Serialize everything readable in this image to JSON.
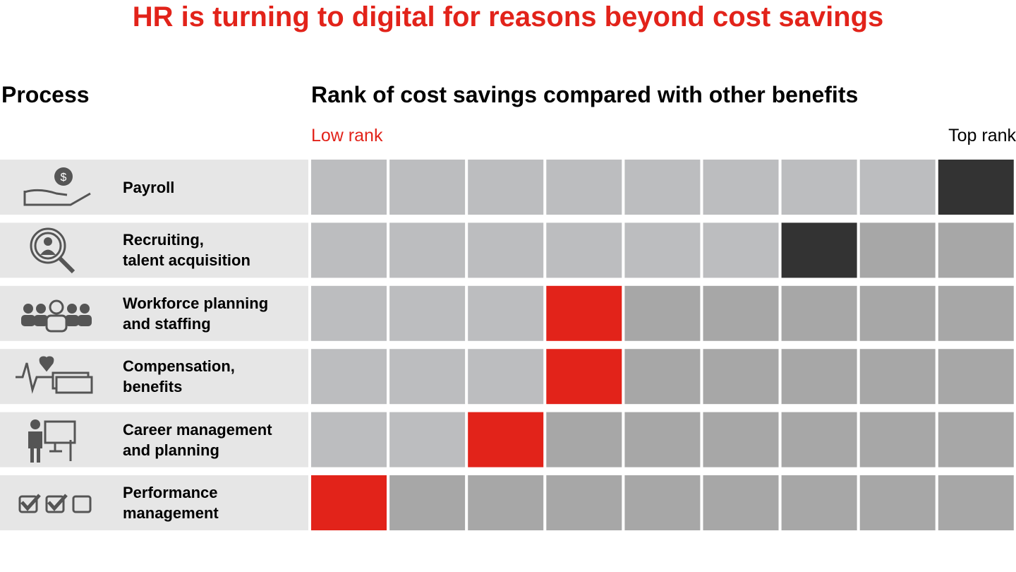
{
  "chart_data": {
    "type": "rank-grid",
    "title": "HR is turning to digital for reasons beyond cost savings",
    "row_header": "Process",
    "column_header": "Rank of cost savings compared with other benefits",
    "low_label": "Low rank",
    "top_label": "Top rank",
    "xlim": [
      1,
      9
    ],
    "categories": [
      "Payroll",
      "Recruiting,\ntalent acquisition",
      "Workforce planning\nand staffing",
      "Compensation,\nbenefits",
      "Career management\nand planning",
      "Performance\nmanagement"
    ],
    "values": [
      9,
      7,
      4,
      4,
      3,
      1
    ],
    "colors": [
      "#333333",
      "#333333",
      "#e2231a",
      "#e2231a",
      "#e2231a",
      "#e2231a"
    ],
    "color_below": "#bcbdbf",
    "color_above": "#a7a7a7",
    "label_background": "#e6e6e6"
  }
}
